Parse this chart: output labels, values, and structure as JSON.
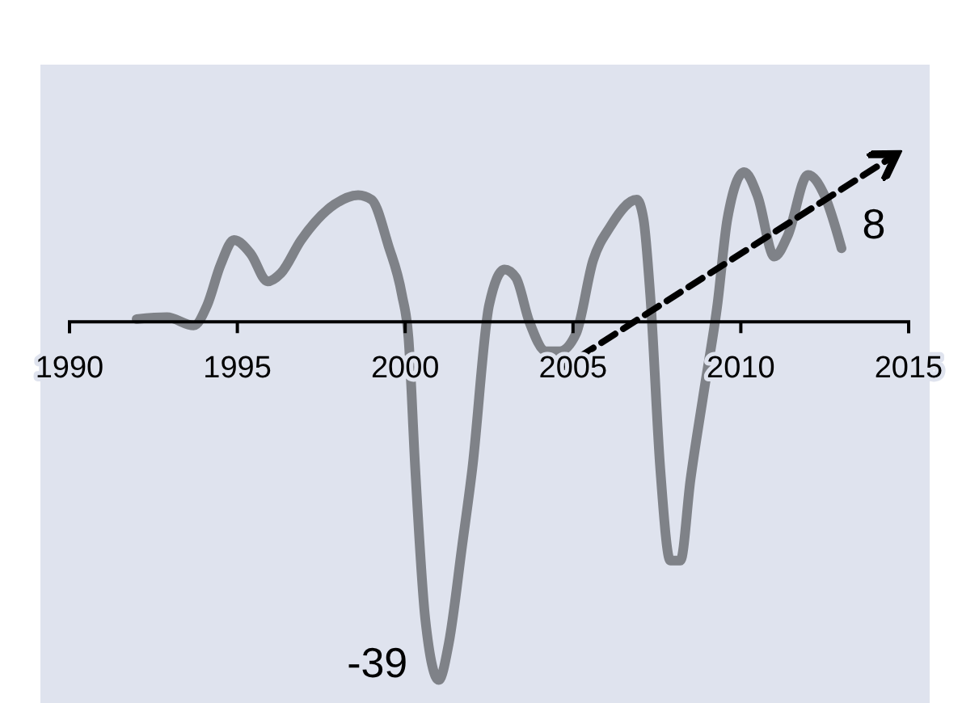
{
  "chart_data": {
    "type": "line",
    "xlim": [
      1990,
      2015
    ],
    "xticks": [
      1990,
      1995,
      2000,
      2005,
      2010,
      2015
    ],
    "ylim": [
      -41.5,
      28
    ],
    "tick_labels": "x",
    "marker": "none",
    "series": [
      {
        "color": "#7f8288",
        "line_style": "solid",
        "x": [
          1992.0,
          1992.9,
          1993.7,
          1994.1,
          1994.5,
          1994.9,
          1995.4,
          1995.9,
          1996.3,
          1996.9,
          1997.9,
          1998.6,
          1999.0,
          1999.5,
          1999.9,
          2000.1,
          2000.3,
          2000.6,
          2001.0,
          2001.3,
          2001.7,
          2002.0,
          2002.5,
          2002.96,
          2003.3,
          2003.7,
          2004.2,
          2004.6,
          2005.1,
          2005.6,
          2006.1,
          2006.9,
          2007.1,
          2007.3,
          2007.6,
          2007.9,
          2008.2,
          2008.5,
          2008.9,
          2009.3,
          2009.6,
          2010.1,
          2010.5,
          2011.0,
          2011.4,
          2012.0,
          2012.5,
          2013.0
        ],
        "values": [
          0.3,
          0.5,
          -0.4,
          1.8,
          6.2,
          8.9,
          7.4,
          4.4,
          5.3,
          8.9,
          12.8,
          13.8,
          13.3,
          8.3,
          3.0,
          -1.8,
          -16,
          -32.4,
          -39,
          -35,
          -24.3,
          -16,
          1.8,
          5.7,
          4.8,
          0,
          -3.2,
          -3.2,
          -1.2,
          6.7,
          10.3,
          13.3,
          11.2,
          3.0,
          -16,
          -26,
          -26,
          -17.2,
          -7.6,
          1.8,
          11.2,
          16.3,
          13.7,
          7.1,
          9.4,
          16,
          13.7,
          8
        ],
        "value_labels": [
          null,
          null,
          null,
          null,
          null,
          null,
          null,
          null,
          null,
          null,
          null,
          null,
          null,
          null,
          null,
          null,
          null,
          null,
          "-39",
          null,
          null,
          null,
          null,
          null,
          null,
          null,
          null,
          null,
          null,
          null,
          null,
          null,
          null,
          null,
          null,
          null,
          null,
          null,
          null,
          null,
          null,
          null,
          null,
          null,
          null,
          null,
          null,
          "8"
        ]
      },
      {
        "type": "line",
        "color": "#000000",
        "line_style": "dashed",
        "x": [
          2004.55,
          2014.4
        ],
        "values": [
          -5.3,
          17.7
        ]
      }
    ]
  }
}
